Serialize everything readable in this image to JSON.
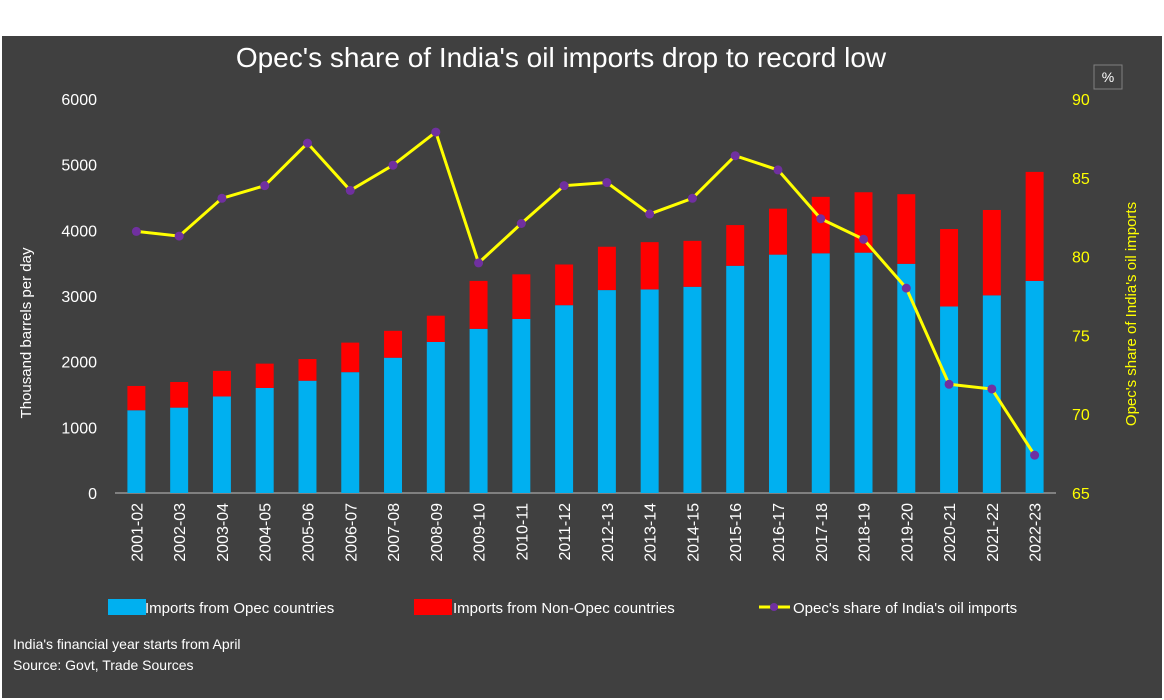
{
  "chart_data": {
    "type": "bar",
    "title": "Opec's share of India's oil imports drop to record low",
    "ylabel": "Thousand barrels per day",
    "y2label": "Opec's share of India's oil imports",
    "y2unit": "%",
    "ylim": [
      0,
      6000
    ],
    "y2lim": [
      65,
      90
    ],
    "yticks": [
      "0",
      "1000",
      "2000",
      "3000",
      "4000",
      "5000",
      "6000"
    ],
    "y2ticks": [
      "65",
      "70",
      "75",
      "80",
      "85",
      "90"
    ],
    "stacked": true,
    "categories": [
      "2001-02",
      "2002-03",
      "2003-04",
      "2004-05",
      "2005-06",
      "2006-07",
      "2007-08",
      "2008-09",
      "2009-10",
      "2010-11",
      "2011-12",
      "2012-13",
      "2013-14",
      "2014-15",
      "2015-16",
      "2016-17",
      "2017-18",
      "2018-19",
      "2019-20",
      "2020-21",
      "2021-22",
      "2022-23"
    ],
    "series": [
      {
        "name": "Imports from Opec countries",
        "kind": "bar",
        "color": "#00b0f0",
        "values": [
          1260,
          1300,
          1470,
          1600,
          1710,
          1840,
          2060,
          2300,
          2500,
          2650,
          2860,
          3090,
          3100,
          3140,
          3460,
          3630,
          3650,
          3660,
          3490,
          2840,
          3010,
          3230
        ]
      },
      {
        "name": "Imports from Non-Opec countries",
        "kind": "bar",
        "color": "#ff0000",
        "values": [
          370,
          390,
          390,
          370,
          330,
          450,
          410,
          400,
          730,
          680,
          620,
          660,
          720,
          700,
          620,
          700,
          860,
          920,
          1060,
          1180,
          1300,
          1660
        ]
      },
      {
        "name": "Opec's share of India's oil imports",
        "kind": "line",
        "axis": "right",
        "color": "#ffff00",
        "marker_color": "#7030a0",
        "values": [
          81.6,
          81.3,
          83.7,
          84.5,
          87.2,
          84.2,
          85.8,
          87.9,
          79.6,
          82.1,
          84.5,
          84.7,
          82.7,
          83.7,
          86.4,
          85.5,
          82.4,
          81.1,
          78.0,
          71.9,
          71.6,
          67.4
        ]
      }
    ],
    "grid": false,
    "legend_position": "bottom"
  },
  "notes": {
    "line1": "India's financial year starts from April",
    "line2": "Source: Govt, Trade Sources"
  }
}
